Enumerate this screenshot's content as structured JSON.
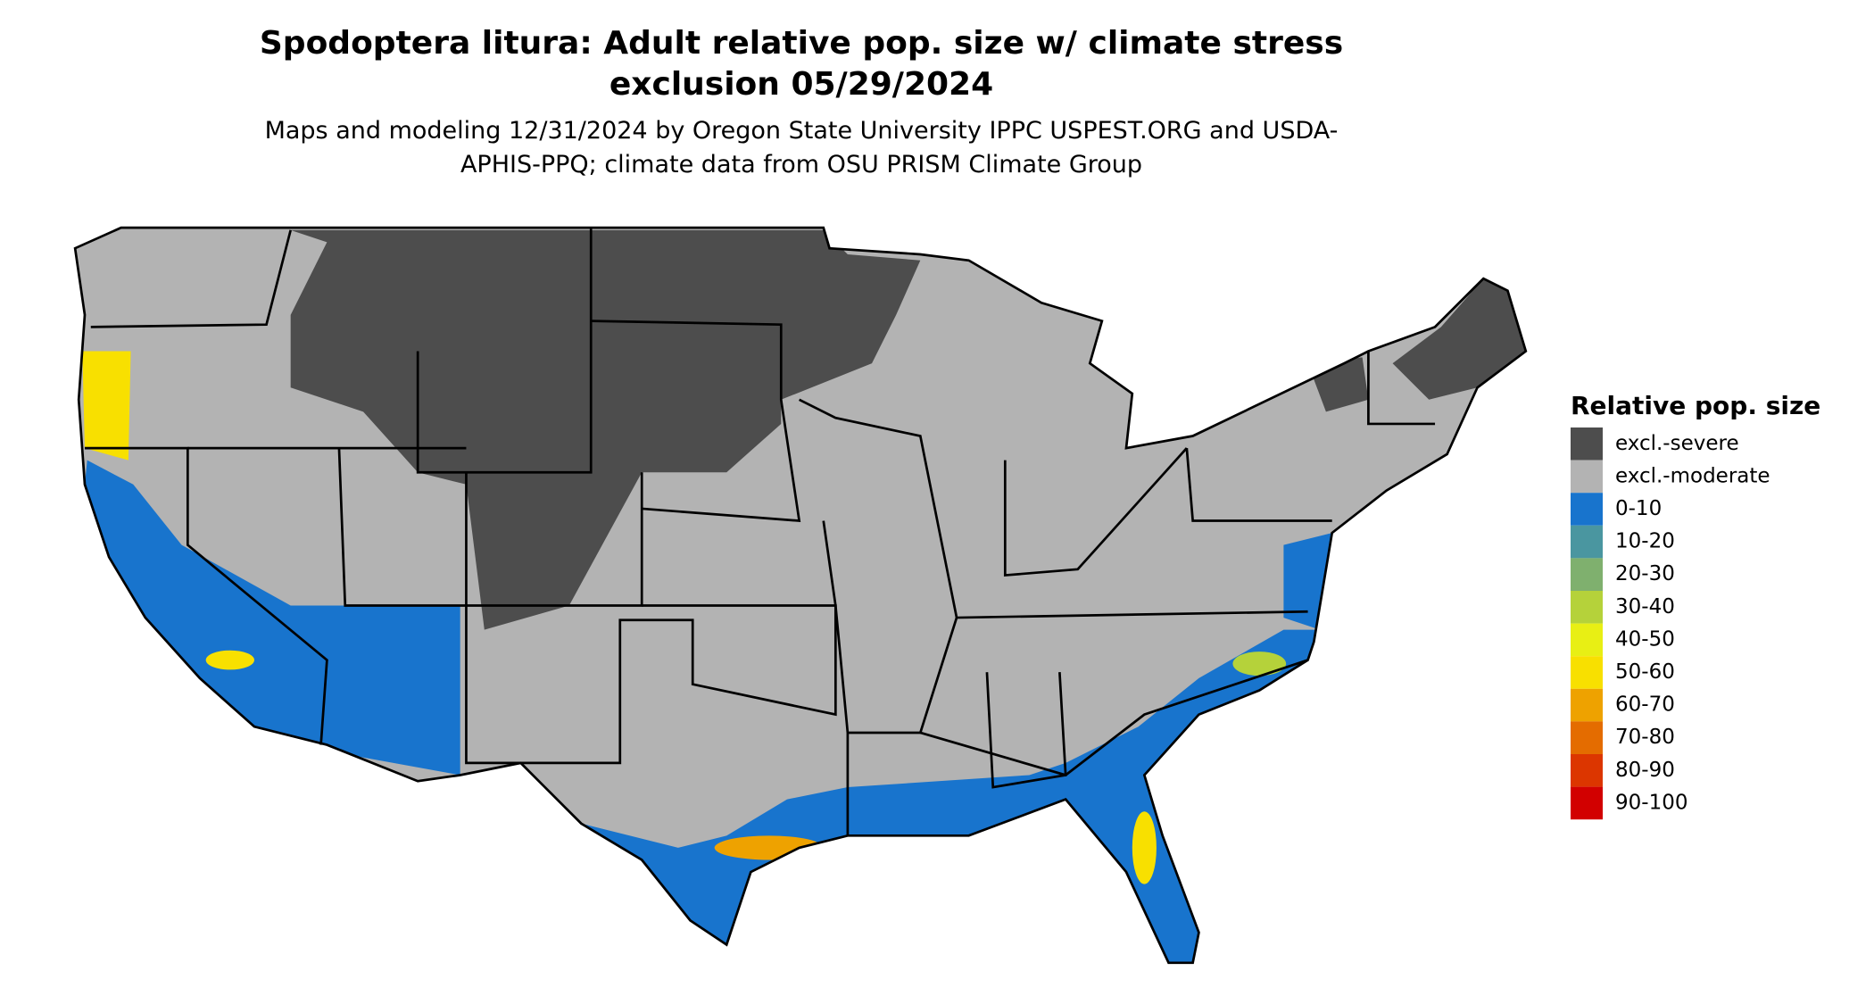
{
  "title": "Spodoptera litura: Adult relative pop. size w/ climate stress exclusion 05/29/2024",
  "subtitle": "Maps and modeling 12/31/2024 by Oregon State University IPPC USPEST.ORG and USDA-APHIS-PPQ; climate data from OSU PRISM Climate Group",
  "legend": {
    "title": "Relative pop. size",
    "items": [
      {
        "label": "excl.-severe",
        "color": "#4d4d4d"
      },
      {
        "label": "excl.-moderate",
        "color": "#b3b3b3"
      },
      {
        "label": "0-10",
        "color": "#1874cd"
      },
      {
        "label": "10-20",
        "color": "#4a96a0"
      },
      {
        "label": "20-30",
        "color": "#7fb06e"
      },
      {
        "label": "30-40",
        "color": "#b5d23a"
      },
      {
        "label": "40-50",
        "color": "#e8ef14"
      },
      {
        "label": "50-60",
        "color": "#f8e000"
      },
      {
        "label": "60-70",
        "color": "#eea200"
      },
      {
        "label": "70-80",
        "color": "#e46c00"
      },
      {
        "label": "80-90",
        "color": "#dc3600"
      },
      {
        "label": "90-100",
        "color": "#d20000"
      }
    ]
  }
}
